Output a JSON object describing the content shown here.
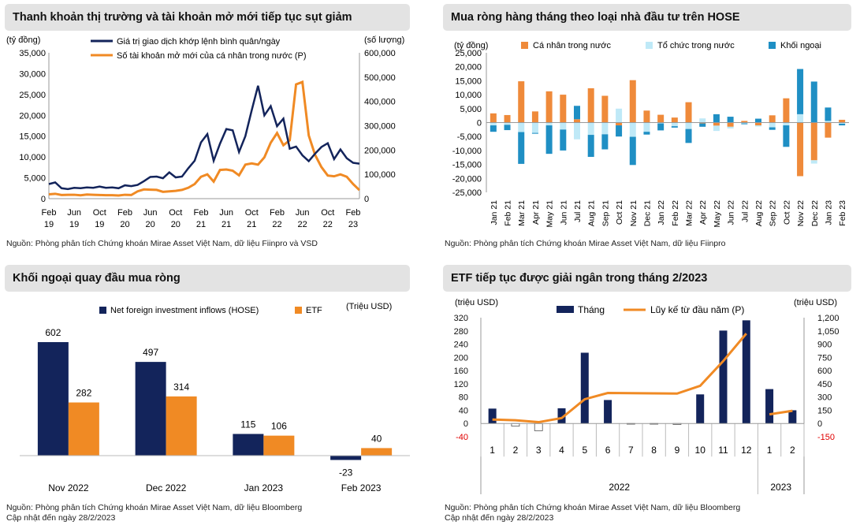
{
  "colors": {
    "navy": "#13245b",
    "orange": "#f08a24",
    "orange_bar": "#ef8a3a",
    "light_blue": "#bfe9f7",
    "teal": "#1f8fc4",
    "title_bg": "#e3e3e3",
    "red": "#e00000"
  },
  "charts": [
    {
      "title": "Thanh khoản thị trường và tài khoản mở mới tiếp tục sụt giảm",
      "source": "Nguồn: Phòng phân tích Chứng khoán Mirae Asset Việt Nam, dữ liệu Fiinpro và VSD",
      "chart_data": {
        "type": "line",
        "left_unit": "(tỷ đồng)",
        "right_unit": "(số lượng)",
        "ylim_left": [
          0,
          35000
        ],
        "ylim_right": [
          0,
          600000
        ],
        "left_ticks": [
          "0",
          "5,000",
          "10,000",
          "15,000",
          "20,000",
          "25,000",
          "30,000",
          "35,000"
        ],
        "right_ticks": [
          "0",
          "100,000",
          "200,000",
          "300,000",
          "400,000",
          "500,000",
          "600,000"
        ],
        "x_ticks": [
          {
            "i": 0,
            "top": "Feb",
            "bottom": "19"
          },
          {
            "i": 4,
            "top": "Jun",
            "bottom": "19"
          },
          {
            "i": 8,
            "top": "Oct",
            "bottom": "19"
          },
          {
            "i": 12,
            "top": "Feb",
            "bottom": "20"
          },
          {
            "i": 16,
            "top": "Jun",
            "bottom": "20"
          },
          {
            "i": 20,
            "top": "Oct",
            "bottom": "20"
          },
          {
            "i": 24,
            "top": "Feb",
            "bottom": "21"
          },
          {
            "i": 28,
            "top": "Jun",
            "bottom": "21"
          },
          {
            "i": 32,
            "top": "Oct",
            "bottom": "21"
          },
          {
            "i": 36,
            "top": "Feb",
            "bottom": "22"
          },
          {
            "i": 40,
            "top": "Jun",
            "bottom": "22"
          },
          {
            "i": 44,
            "top": "Oct",
            "bottom": "22"
          },
          {
            "i": 48,
            "top": "Feb",
            "bottom": "23"
          }
        ],
        "series": [
          {
            "name": "Giá trị giao dịch khớp lệnh bình quân/ngày",
            "axis": "left",
            "values": [
              3500,
              3900,
              2500,
              2300,
              2600,
              2500,
              2700,
              2600,
              2900,
              2600,
              2700,
              2500,
              3200,
              3000,
              3300,
              4200,
              5200,
              5300,
              4900,
              6300,
              5100,
              5300,
              7300,
              9100,
              13500,
              15500,
              9100,
              13200,
              16700,
              16400,
              11200,
              15000,
              21200,
              27100,
              20000,
              22200,
              17400,
              19200,
              12000,
              12500,
              10400,
              9000,
              10800,
              12400,
              13300,
              9500,
              11800,
              9700,
              8600,
              8400
            ]
          },
          {
            "name": "Số tài khoản mở mới của cá nhân trong nước (P)",
            "axis": "right",
            "values": [
              18000,
              20000,
              15000,
              16000,
              16000,
              14000,
              17000,
              16000,
              15000,
              14000,
              14000,
              13000,
              16000,
              15000,
              30000,
              38000,
              37000,
              36000,
              28000,
              30000,
              32000,
              36000,
              45000,
              60000,
              90000,
              100000,
              70000,
              118000,
              120000,
              115000,
              96000,
              140000,
              145000,
              140000,
              170000,
              230000,
              270000,
              220000,
              240000,
              470000,
              480000,
              260000,
              180000,
              130000,
              95000,
              92000,
              100000,
              90000,
              60000,
              35000
            ]
          }
        ]
      }
    },
    {
      "title": "Mua ròng hàng tháng theo loại nhà đầu tư trên HOSE",
      "source": "Nguồn: Phòng phân tích Chứng khoán Mirae Asset Việt Nam, dữ liệu Fiinpro",
      "chart_data": {
        "type": "bar",
        "stacked": true,
        "unit": "(tỷ đồng)",
        "ylim": [
          -25000,
          25000
        ],
        "y_ticks": [
          "-25,000",
          "-20,000",
          "-15,000",
          "-10,000",
          "-5,000",
          "0",
          "5,000",
          "10,000",
          "15,000",
          "20,000",
          "25,000"
        ],
        "categories": [
          "Jan 21",
          "Feb 21",
          "Mar 21",
          "Apr 21",
          "May 21",
          "Jun 21",
          "Jul 21",
          "Aug 21",
          "Sep 21",
          "Oct 21",
          "Nov 21",
          "Dec 21",
          "Jan 22",
          "Feb 22",
          "Mar 22",
          "Apr 22",
          "May 22",
          "Jun 22",
          "Jul 22",
          "Aug 22",
          "Sep 22",
          "Oct 22",
          "Nov 22",
          "Dec 22",
          "Jan 23",
          "Feb 23"
        ],
        "series": [
          {
            "name": "Cá nhân trong nước",
            "values": [
              3300,
              2700,
              14800,
              4000,
              11200,
              10000,
              1200,
              12300,
              9600,
              -1000,
              15200,
              4300,
              2800,
              1800,
              7300,
              -300,
              -1100,
              -1500,
              600,
              -1000,
              2600,
              8700,
              -19200,
              -13500,
              -5400,
              1000
            ]
          },
          {
            "name": "Tổ chức trong nước",
            "values": [
              -1000,
              -800,
              -3400,
              -3700,
              -1000,
              -2500,
              -6000,
              -4400,
              -4200,
              5000,
              -5100,
              -3300,
              -300,
              -1300,
              -2300,
              1500,
              -1900,
              -600,
              -300,
              -400,
              -1700,
              -1000,
              3000,
              -1200,
              600,
              -400
            ]
          },
          {
            "name": "Khối ngoại",
            "values": [
              -2300,
              -1900,
              -11400,
              -300,
              -10200,
              -7500,
              4800,
              -7900,
              -5400,
              -4000,
              -10100,
              -1000,
              -2500,
              -500,
              -5000,
              -1200,
              3000,
              2100,
              -300,
              1400,
              -900,
              -7700,
              16200,
              14700,
              4800,
              -600
            ]
          }
        ]
      }
    },
    {
      "title": "Khối ngoại quay đầu mua ròng",
      "source": "Nguồn: Phòng phân tích Chứng khoán Mirae Asset Việt Nam, dữ liệu Bloomberg",
      "updated": "Cập nhật đến ngày 28/2/2023",
      "chart_data": {
        "type": "bar",
        "unit": "(Triệu USD)",
        "categories": [
          "Nov 2022",
          "Dec 2022",
          "Jan 2023",
          "Feb 2023"
        ],
        "series": [
          {
            "name": "Net foreign investment inflows (HOSE)",
            "values": [
              602,
              497,
              115,
              -23
            ]
          },
          {
            "name": "ETF",
            "values": [
              282,
              314,
              106,
              40
            ]
          }
        ]
      }
    },
    {
      "title": "ETF tiếp tục được giải ngân trong tháng 2/2023",
      "source": "Nguồn: Phòng phân tích Chứng khoán Mirae Asset Việt Nam, dữ liệu Bloomberg",
      "updated": "Cập nhật đến ngày 28/2/2023",
      "chart_data": {
        "type": "bar",
        "left_unit": "(triệu USD)",
        "right_unit": "(triệu USD)",
        "ylim_left": [
          -40,
          320
        ],
        "ylim_right": [
          -150,
          1200
        ],
        "left_ticks": [
          "-40",
          "0",
          "40",
          "80",
          "120",
          "160",
          "200",
          "240",
          "280",
          "320"
        ],
        "right_ticks": [
          "-150",
          "0",
          "150",
          "300",
          "450",
          "600",
          "750",
          "900",
          "1,050",
          "1,200"
        ],
        "categories": [
          "1",
          "2",
          "3",
          "4",
          "5",
          "6",
          "7",
          "8",
          "9",
          "10",
          "11",
          "12",
          "1",
          "2"
        ],
        "years": [
          {
            "label": "2022",
            "months": 12
          },
          {
            "label": "2023",
            "months": 2
          }
        ],
        "series": [
          {
            "name": "Tháng",
            "axis": "left",
            "values": [
              45,
              -8,
              -22,
              46,
              214,
              71,
              -2,
              -2,
              -3,
              88,
              281,
              312,
              104,
              40
            ]
          },
          {
            "name": "Lũy kế từ đầu năm (P)",
            "axis": "right",
            "values": [
              45,
              37,
              15,
              61,
              275,
              346,
              344,
              342,
              339,
              427,
              708,
              1020,
              104,
              144
            ],
            "break_after": 11
          }
        ]
      }
    }
  ]
}
